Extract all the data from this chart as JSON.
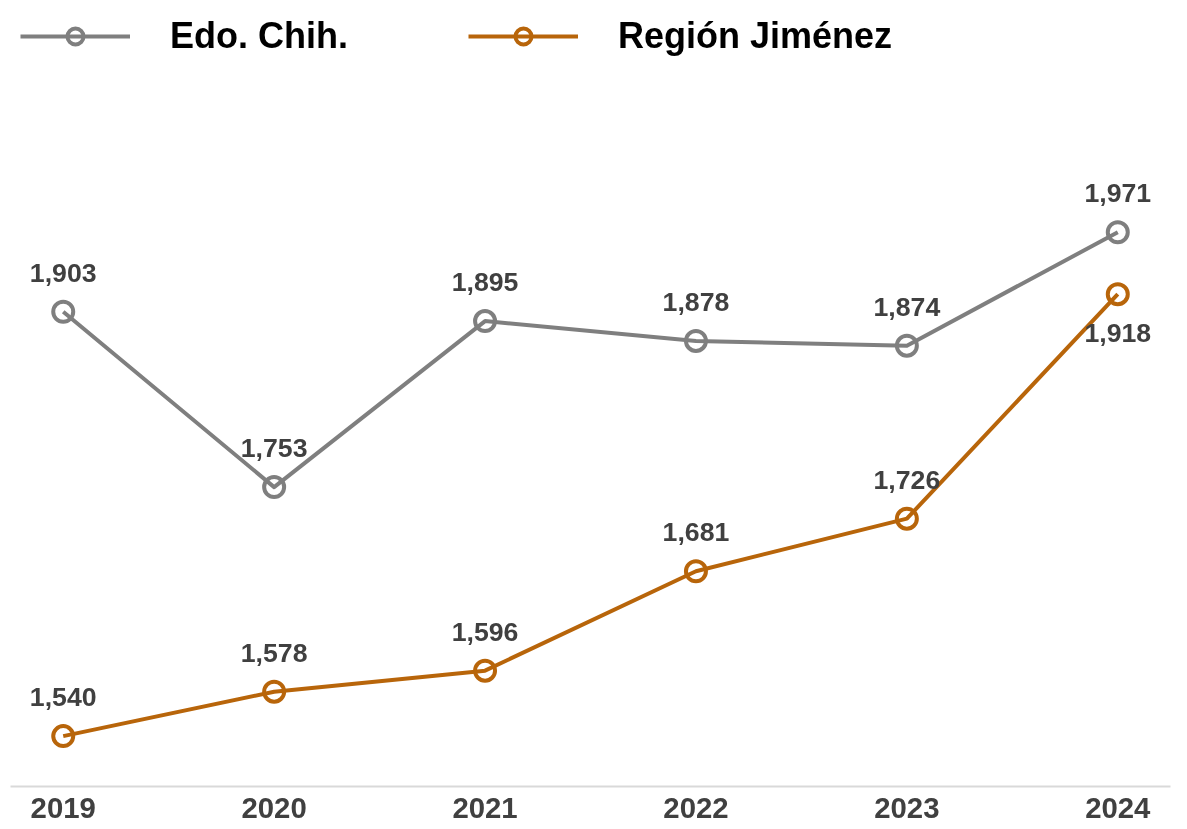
{
  "chart_data": {
    "type": "line",
    "categories": [
      "2019",
      "2020",
      "2021",
      "2022",
      "2023",
      "2024"
    ],
    "series": [
      {
        "name": "Edo. Chih.",
        "color": "#7f7f7f",
        "values": [
          1903,
          1753,
          1895,
          1878,
          1874,
          1971
        ],
        "value_labels": [
          "1,903",
          "1,753",
          "1,895",
          "1,878",
          "1,874",
          "1,971"
        ]
      },
      {
        "name": "Región Jiménez",
        "color": "#b8650a",
        "values": [
          1540,
          1578,
          1596,
          1681,
          1726,
          1918
        ],
        "value_labels": [
          "1,540",
          "1,578",
          "1,596",
          "1,681",
          "1,726",
          "1,918"
        ]
      }
    ],
    "marker": "circle",
    "line_style": "solid",
    "legend": "top left",
    "grid": false
  }
}
